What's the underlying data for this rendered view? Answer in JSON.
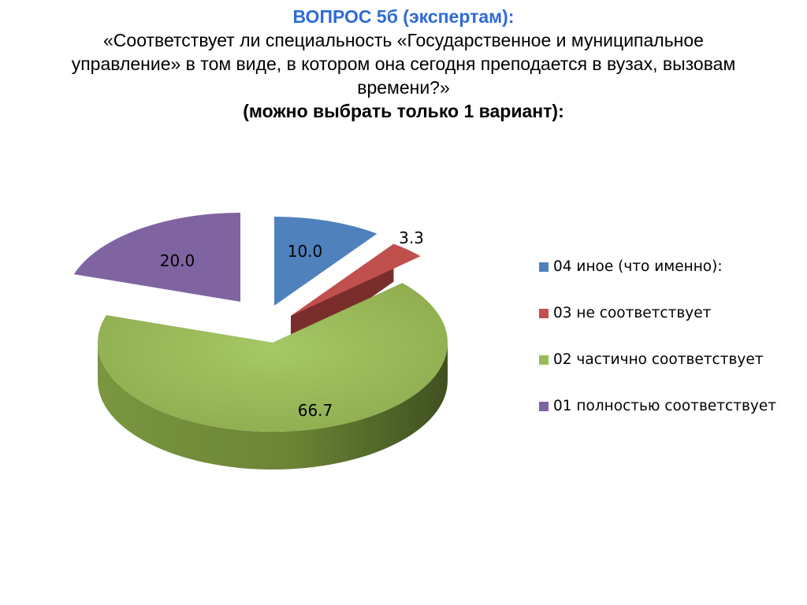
{
  "title": {
    "line1": "ВОПРОС 5б (экспертам):",
    "line2a": "«Соответствует ли специальность «Государственное и муниципальное",
    "line2b": "управление» в том виде, в котором она сегодня преподается в вузах, вызовам",
    "line2c": "времени?»",
    "line3": "(можно выбрать только 1 вариант):"
  },
  "chart_data": {
    "type": "pie",
    "title": "",
    "labels": [
      "04  иное (что именно):",
      "03  не соответствует",
      "02  частично соответствует",
      "01  полностью соответствует"
    ],
    "values": [
      10.0,
      3.3,
      66.7,
      20.0
    ],
    "value_labels": [
      "10.0",
      "3.3",
      "66.7",
      "20.0"
    ],
    "colors": [
      "#4f81bd",
      "#c0504d",
      "#9bbb59",
      "#8064a2"
    ],
    "exploded": true,
    "legend": "right",
    "style": "3d"
  }
}
